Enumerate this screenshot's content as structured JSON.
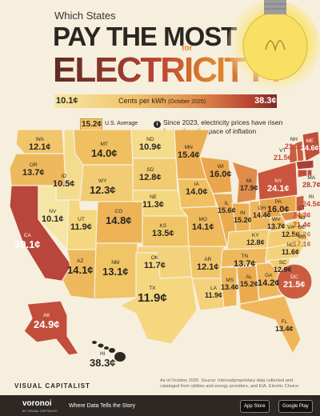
{
  "header": {
    "kicker": "Which States",
    "headline_line1": "PAY THE MOST",
    "headline_for": "for",
    "headline_line2": "ELECTRICITY?"
  },
  "scale": {
    "min": "10.1¢",
    "max": "38.3¢",
    "unit_label": "Cents per kWh",
    "unit_sub": "(October 2025)"
  },
  "average": {
    "value": "15.2¢",
    "label": "U.S. Average"
  },
  "note": {
    "icon": "info-icon",
    "text": "Since 2023, electricity prices have risen faster than the pace of inflation"
  },
  "states": [
    {
      "abbr": "WA",
      "price": "12.1¢"
    },
    {
      "abbr": "OR",
      "price": "13.7¢"
    },
    {
      "abbr": "CA",
      "price": "30.1¢"
    },
    {
      "abbr": "ID",
      "price": "10.5¢"
    },
    {
      "abbr": "NV",
      "price": "10.1¢"
    },
    {
      "abbr": "MT",
      "price": "14.0¢"
    },
    {
      "abbr": "WY",
      "price": "12.3¢"
    },
    {
      "abbr": "UT",
      "price": "11.9¢"
    },
    {
      "abbr": "AZ",
      "price": "14.1¢"
    },
    {
      "abbr": "CO",
      "price": "14.8¢"
    },
    {
      "abbr": "NM",
      "price": "13.1¢"
    },
    {
      "abbr": "ND",
      "price": "10.9¢"
    },
    {
      "abbr": "SD",
      "price": "12.8¢"
    },
    {
      "abbr": "NE",
      "price": "11.3¢"
    },
    {
      "abbr": "KS",
      "price": "13.5¢"
    },
    {
      "abbr": "OK",
      "price": "11.7¢"
    },
    {
      "abbr": "TX",
      "price": "11.9¢"
    },
    {
      "abbr": "MN",
      "price": "15.4¢"
    },
    {
      "abbr": "IA",
      "price": "14.0¢"
    },
    {
      "abbr": "MO",
      "price": "14.1¢"
    },
    {
      "abbr": "AR",
      "price": "12.1¢"
    },
    {
      "abbr": "LA",
      "price": "11.9¢"
    },
    {
      "abbr": "WI",
      "price": "16.0¢"
    },
    {
      "abbr": "IL",
      "price": "15.6¢"
    },
    {
      "abbr": "MI",
      "price": "17.9¢"
    },
    {
      "abbr": "IN",
      "price": "15.2¢"
    },
    {
      "abbr": "OH",
      "price": "14.4¢"
    },
    {
      "abbr": "KY",
      "price": "12.8¢"
    },
    {
      "abbr": "TN",
      "price": "13.7¢"
    },
    {
      "abbr": "MS",
      "price": "13.4¢"
    },
    {
      "abbr": "AL",
      "price": "15.2¢"
    },
    {
      "abbr": "GA",
      "price": "14.2¢"
    },
    {
      "abbr": "FL",
      "price": "13.4¢"
    },
    {
      "abbr": "SC",
      "price": "12.9¢"
    },
    {
      "abbr": "NC",
      "price": "11.6¢"
    },
    {
      "abbr": "VA",
      "price": "12.5¢"
    },
    {
      "abbr": "WV",
      "price": "13.7¢"
    },
    {
      "abbr": "PA",
      "price": "16.0¢"
    },
    {
      "abbr": "NY",
      "price": "24.1¢"
    },
    {
      "abbr": "VT",
      "price": "21.5¢"
    },
    {
      "abbr": "NH",
      "price": "21.5¢"
    },
    {
      "abbr": "ME",
      "price": "24.6¢"
    },
    {
      "abbr": "MA",
      "price": "28.7¢"
    },
    {
      "abbr": "RI",
      "price": "24.5¢"
    },
    {
      "abbr": "CT",
      "price": "24.3¢"
    },
    {
      "abbr": "NJ",
      "price": "21.4¢"
    },
    {
      "abbr": "DE",
      "price": "15.2¢"
    },
    {
      "abbr": "MD",
      "price": "17.1¢"
    },
    {
      "abbr": "DC",
      "price": "21.5¢"
    },
    {
      "abbr": "AK",
      "price": "24.9¢"
    },
    {
      "abbr": "HI",
      "price": "38.3¢"
    }
  ],
  "colors": {
    "background": "#f6efde",
    "low": "#f6e6a6",
    "mid": "#f2c46a",
    "high": "#e08a4c",
    "very_high": "#b94432",
    "max": "#7a2a2a"
  },
  "footer": {
    "brand": "VISUAL CAPITALIST",
    "source": "As of October 2025. Source: Internal/proprietary data collected and cataloged from utilities and energy providers, and EIA, Electric Choice",
    "voronoi": "voronoi",
    "voronoi_sub": "BY VISUAL CAPITALIST",
    "tagline": "Where Data Tells the Story",
    "app_store": "App Store",
    "google_play": "Google Play"
  }
}
